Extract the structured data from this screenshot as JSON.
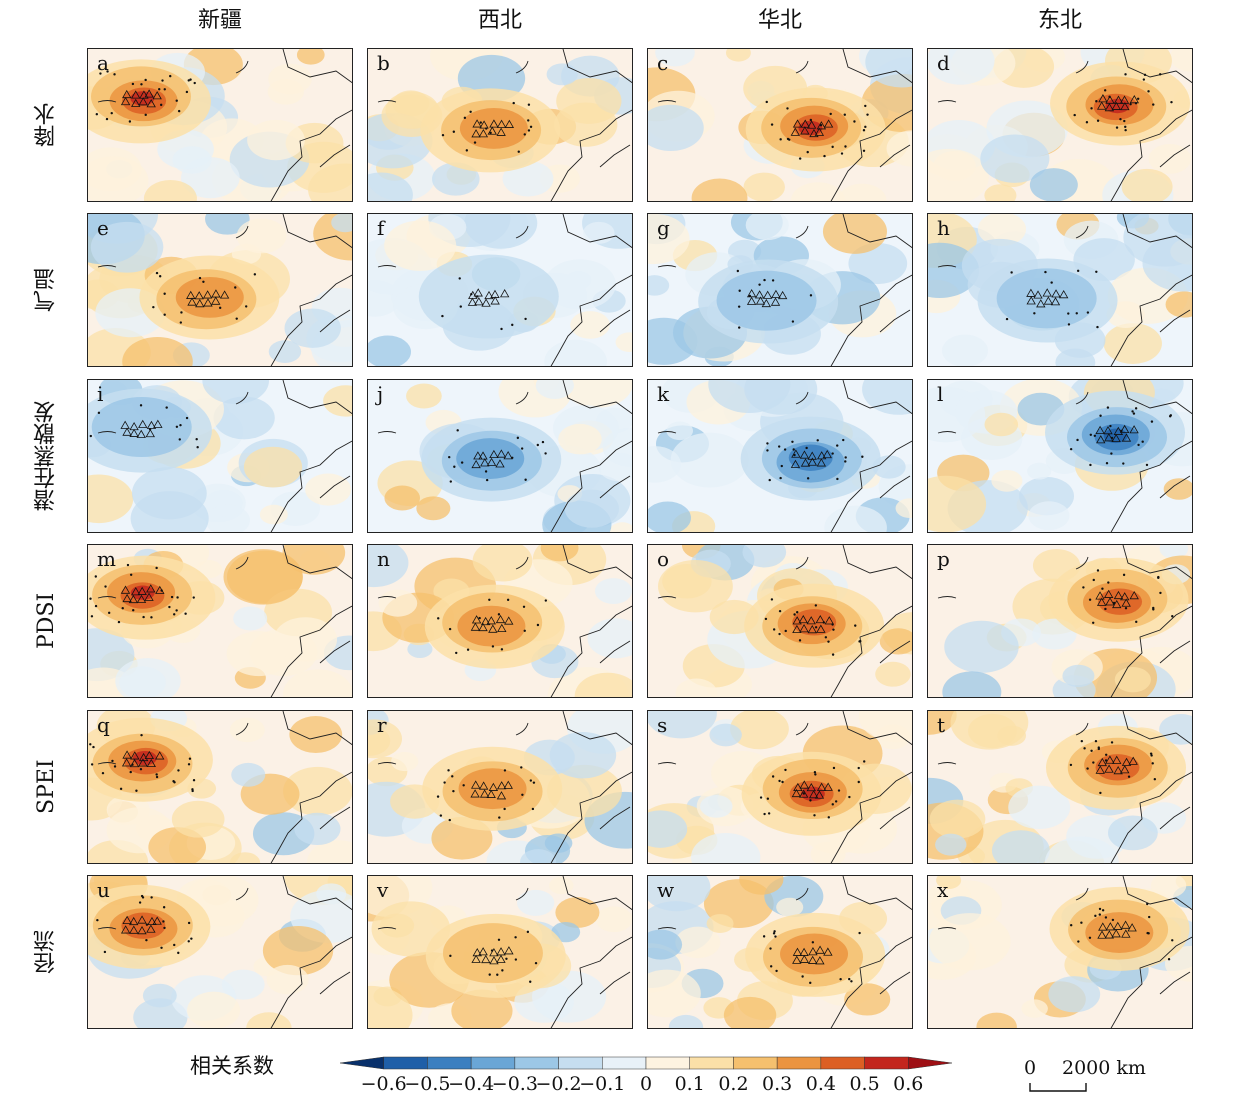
{
  "columns": [
    "新疆",
    "西北",
    "华北",
    "东北"
  ],
  "rows": [
    "降水",
    "气温",
    "潜在蒸散发",
    "PDSI",
    "SPEI",
    "径流"
  ],
  "panels": [
    {
      "letter": "a",
      "tone": "warm",
      "strength": 0.55,
      "focus": "west"
    },
    {
      "letter": "b",
      "tone": "warm",
      "strength": 0.4,
      "focus": "northwest"
    },
    {
      "letter": "c",
      "tone": "warm",
      "strength": 0.55,
      "focus": "north"
    },
    {
      "letter": "d",
      "tone": "warm",
      "strength": 0.55,
      "focus": "northeast"
    },
    {
      "letter": "e",
      "tone": "warm",
      "strength": 0.35,
      "focus": "broad"
    },
    {
      "letter": "f",
      "tone": "cool",
      "strength": 0.2,
      "focus": "broad"
    },
    {
      "letter": "g",
      "tone": "cool",
      "strength": 0.25,
      "focus": "broad"
    },
    {
      "letter": "h",
      "tone": "cool",
      "strength": 0.3,
      "focus": "broad"
    },
    {
      "letter": "i",
      "tone": "cool",
      "strength": 0.3,
      "focus": "west"
    },
    {
      "letter": "j",
      "tone": "cool",
      "strength": 0.35,
      "focus": "northwest"
    },
    {
      "letter": "k",
      "tone": "cool",
      "strength": 0.5,
      "focus": "north"
    },
    {
      "letter": "l",
      "tone": "cool",
      "strength": 0.55,
      "focus": "northeast"
    },
    {
      "letter": "m",
      "tone": "warm",
      "strength": 0.55,
      "focus": "west"
    },
    {
      "letter": "n",
      "tone": "warm",
      "strength": 0.35,
      "focus": "northwest"
    },
    {
      "letter": "o",
      "tone": "warm",
      "strength": 0.5,
      "focus": "north"
    },
    {
      "letter": "p",
      "tone": "warm",
      "strength": 0.45,
      "focus": "northeast"
    },
    {
      "letter": "q",
      "tone": "warm",
      "strength": 0.55,
      "focus": "west"
    },
    {
      "letter": "r",
      "tone": "warm",
      "strength": 0.4,
      "focus": "northwest"
    },
    {
      "letter": "s",
      "tone": "warm",
      "strength": 0.55,
      "focus": "north"
    },
    {
      "letter": "t",
      "tone": "warm",
      "strength": 0.45,
      "focus": "northeast"
    },
    {
      "letter": "u",
      "tone": "warm",
      "strength": 0.45,
      "focus": "west"
    },
    {
      "letter": "v",
      "tone": "warm",
      "strength": 0.3,
      "focus": "northwest"
    },
    {
      "letter": "w",
      "tone": "warm",
      "strength": 0.35,
      "focus": "north"
    },
    {
      "letter": "x",
      "tone": "warm",
      "strength": 0.4,
      "focus": "northeast"
    }
  ],
  "legend": {
    "title": "相关系数",
    "ticks": [
      "−0.6",
      "−0.5",
      "−0.4",
      "−0.3",
      "−0.2",
      "−0.1",
      "0",
      "0.1",
      "0.2",
      "0.3",
      "0.4",
      "0.5",
      "0.6"
    ],
    "colors": [
      "#08306b",
      "#1f5fa8",
      "#3b7fc0",
      "#6aa6d6",
      "#9cc7e6",
      "#c6def0",
      "#e8f1f8",
      "#fdf3e1",
      "#fbe0a8",
      "#f5c06e",
      "#eb9440",
      "#dc5f24",
      "#c3261d",
      "#9e0f14"
    ]
  },
  "scale_bar": {
    "zero": "0",
    "label": "2000 km"
  }
}
